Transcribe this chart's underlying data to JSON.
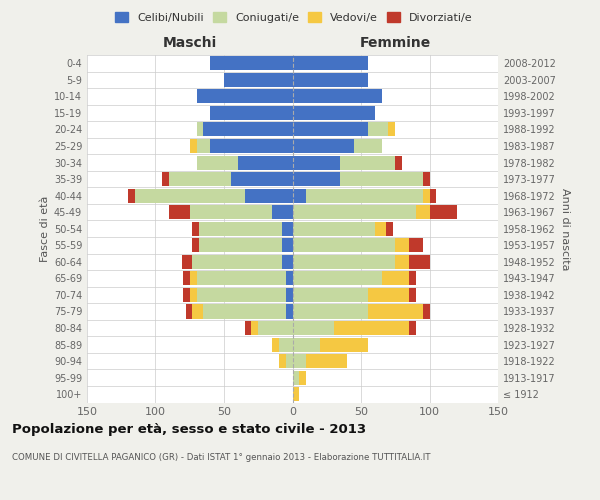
{
  "age_groups": [
    "100+",
    "95-99",
    "90-94",
    "85-89",
    "80-84",
    "75-79",
    "70-74",
    "65-69",
    "60-64",
    "55-59",
    "50-54",
    "45-49",
    "40-44",
    "35-39",
    "30-34",
    "25-29",
    "20-24",
    "15-19",
    "10-14",
    "5-9",
    "0-4"
  ],
  "birth_years": [
    "≤ 1912",
    "1913-1917",
    "1918-1922",
    "1923-1927",
    "1928-1932",
    "1933-1937",
    "1938-1942",
    "1943-1947",
    "1948-1952",
    "1953-1957",
    "1958-1962",
    "1963-1967",
    "1968-1972",
    "1973-1977",
    "1978-1982",
    "1983-1987",
    "1988-1992",
    "1993-1997",
    "1998-2002",
    "2003-2007",
    "2008-2012"
  ],
  "maschi": {
    "celibi": [
      0,
      0,
      0,
      0,
      0,
      5,
      5,
      5,
      8,
      8,
      8,
      15,
      35,
      45,
      40,
      60,
      65,
      60,
      70,
      50,
      60
    ],
    "coniugati": [
      0,
      0,
      5,
      10,
      25,
      60,
      65,
      65,
      65,
      60,
      60,
      60,
      80,
      45,
      30,
      10,
      5,
      0,
      0,
      0,
      0
    ],
    "vedovi": [
      0,
      0,
      5,
      5,
      5,
      8,
      5,
      5,
      0,
      0,
      0,
      0,
      0,
      0,
      0,
      5,
      0,
      0,
      0,
      0,
      0
    ],
    "divorziati": [
      0,
      0,
      0,
      0,
      5,
      5,
      5,
      5,
      8,
      5,
      5,
      15,
      5,
      5,
      0,
      0,
      0,
      0,
      0,
      0,
      0
    ]
  },
  "femmine": {
    "nubili": [
      0,
      0,
      0,
      0,
      0,
      0,
      0,
      0,
      0,
      0,
      0,
      0,
      10,
      35,
      35,
      45,
      55,
      60,
      65,
      55,
      55
    ],
    "coniugate": [
      0,
      5,
      10,
      20,
      30,
      55,
      55,
      65,
      75,
      75,
      60,
      90,
      85,
      60,
      40,
      20,
      15,
      0,
      0,
      0,
      0
    ],
    "vedove": [
      5,
      5,
      30,
      35,
      55,
      40,
      30,
      20,
      10,
      10,
      8,
      10,
      5,
      0,
      0,
      0,
      5,
      0,
      0,
      0,
      0
    ],
    "divorziate": [
      0,
      0,
      0,
      0,
      5,
      5,
      5,
      5,
      15,
      10,
      5,
      20,
      5,
      5,
      5,
      0,
      0,
      0,
      0,
      0,
      0
    ]
  },
  "colors": {
    "celibi_nubili": "#4472C4",
    "coniugati": "#C5D9A0",
    "vedovi": "#F5C842",
    "divorziati": "#C0392B"
  },
  "xlim": 150,
  "title": "Popolazione per età, sesso e stato civile - 2013",
  "subtitle": "COMUNE DI CIVITELLA PAGANICO (GR) - Dati ISTAT 1° gennaio 2013 - Elaborazione TUTTITALIA.IT",
  "ylabel_left": "Fasce di età",
  "ylabel_right": "Anni di nascita",
  "legend_labels": [
    "Celibi/Nubili",
    "Coniugati/e",
    "Vedovi/e",
    "Divorziati/e"
  ],
  "bg_color": "#f0f0eb",
  "plot_bg": "#ffffff"
}
